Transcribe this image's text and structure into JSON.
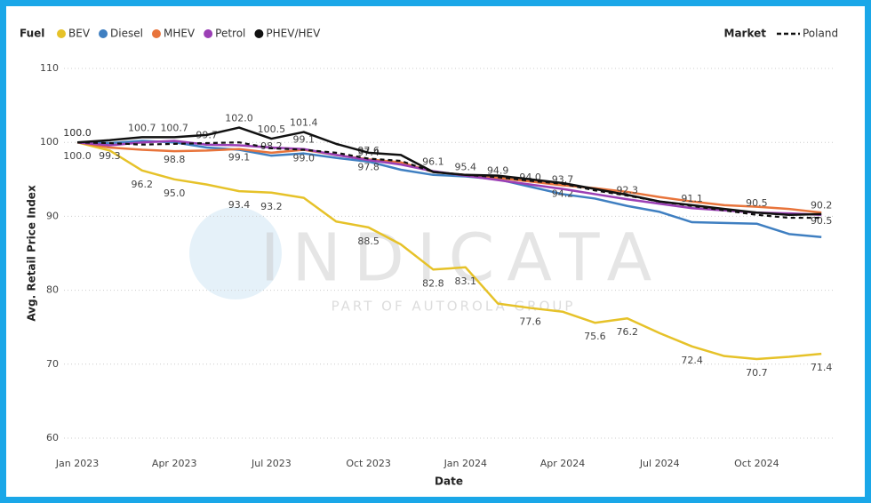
{
  "chart_data": {
    "type": "line",
    "legend_title": "Fuel",
    "market_legend_title": "Market",
    "watermark": "INDICATA",
    "watermark_sub": "PART OF AUTOROLA GROUP",
    "xlabel": "Date",
    "ylabel": "Avg. Retail Price Index",
    "categories": [
      "Jan 2023",
      null,
      null,
      "Apr 2023",
      null,
      null,
      "Jul 2023",
      null,
      null,
      "Oct 2023",
      null,
      null,
      "Jan 2024",
      null,
      null,
      "Apr 2024",
      null,
      null,
      "Jul 2024",
      null,
      null,
      "Oct 2024",
      null,
      null
    ],
    "ylim": [
      60,
      110
    ],
    "yticks": [
      60,
      70,
      80,
      90,
      100,
      110
    ],
    "grid": true,
    "series": [
      {
        "name": "BEV",
        "color": "#e6c229",
        "values": [
          100,
          98.9,
          96.2,
          95.0,
          94.3,
          93.4,
          93.2,
          92.5,
          89.3,
          88.5,
          86.2,
          82.8,
          83.1,
          78.2,
          77.6,
          77.1,
          75.6,
          76.2,
          74.2,
          72.4,
          71.1,
          70.7,
          71.0,
          71.4
        ],
        "value_labels": [
          "100.0",
          null,
          "96.2",
          "95.0",
          null,
          "93.4",
          "93.2",
          null,
          null,
          "88.5",
          null,
          "82.8",
          "83.1",
          null,
          "77.6",
          null,
          "75.6",
          "76.2",
          null,
          "72.4",
          null,
          "70.7",
          null,
          "71.4"
        ]
      },
      {
        "name": "Diesel",
        "color": "#3f7fc1",
        "values": [
          100,
          99.9,
          100.2,
          100.0,
          99.3,
          99.0,
          98.2,
          98.5,
          97.9,
          97.4,
          96.3,
          95.6,
          95.4,
          95.0,
          94.0,
          93.0,
          92.4,
          91.4,
          90.6,
          89.2,
          89.1,
          89.0,
          87.6,
          87.2
        ],
        "value_labels": [
          "100.0",
          null,
          null,
          null,
          null,
          null,
          "98.2",
          null,
          null,
          "97.4",
          null,
          null,
          "95.4",
          null,
          "94.0",
          null,
          null,
          null,
          null,
          null,
          null,
          null,
          null,
          null
        ]
      },
      {
        "name": "MHEV",
        "color": "#e8743b",
        "values": [
          100,
          99.3,
          99.0,
          98.8,
          98.9,
          99.1,
          98.6,
          99.0,
          98.3,
          97.7,
          97.3,
          96.0,
          95.6,
          95.2,
          94.7,
          94.2,
          93.8,
          93.3,
          92.6,
          92.0,
          91.5,
          91.3,
          91.0,
          90.5
        ],
        "value_labels": [
          null,
          "99.3",
          null,
          "98.8",
          null,
          "99.1",
          null,
          "99.0",
          null,
          null,
          null,
          null,
          null,
          null,
          null,
          "94.2",
          null,
          null,
          null,
          null,
          null,
          null,
          null,
          "90.5"
        ]
      },
      {
        "name": "Petrol",
        "color": "#9b3fb5",
        "values": [
          100,
          99.6,
          100.0,
          100.2,
          99.7,
          99.6,
          99.3,
          99.1,
          98.3,
          97.6,
          97.0,
          96.1,
          95.5,
          94.9,
          94.3,
          93.7,
          93.0,
          92.3,
          91.7,
          91.1,
          90.8,
          90.5,
          90.4,
          90.2
        ],
        "value_labels": [
          null,
          null,
          null,
          null,
          "99.7",
          null,
          null,
          "99.1",
          null,
          "97.6",
          null,
          "96.1",
          null,
          "94.9",
          null,
          "93.7",
          null,
          "92.3",
          null,
          "91.1",
          null,
          "90.5",
          null,
          "90.2"
        ]
      },
      {
        "name": "PHEV/HEV",
        "color": "#111111",
        "values": [
          100,
          100.3,
          100.7,
          100.7,
          101.0,
          102.0,
          100.5,
          101.4,
          99.8,
          98.6,
          98.3,
          96.0,
          95.6,
          95.5,
          95.0,
          94.5,
          93.7,
          92.9,
          92.0,
          91.5,
          91.0,
          90.5,
          90.2,
          90.3
        ],
        "value_labels": [
          "100.0",
          null,
          "100.7",
          "100.7",
          null,
          "102.0",
          "100.5",
          "101.4",
          null,
          null,
          null,
          null,
          null,
          null,
          null,
          null,
          null,
          null,
          null,
          null,
          null,
          null,
          null,
          null
        ]
      }
    ],
    "market_series": [
      {
        "name": "Poland",
        "color": "#111111",
        "dash": true,
        "values": [
          100,
          99.9,
          99.7,
          99.8,
          99.9,
          100.0,
          99.2,
          99.0,
          98.6,
          97.8,
          97.5,
          96.0,
          95.6,
          95.3,
          94.8,
          94.4,
          93.5,
          92.8,
          92.0,
          91.4,
          90.8,
          90.2,
          89.8,
          89.8
        ],
        "value_labels": [
          null,
          null,
          null,
          null,
          null,
          null,
          null,
          null,
          null,
          "97.8",
          null,
          null,
          null,
          null,
          null,
          null,
          null,
          null,
          null,
          null,
          null,
          null,
          null,
          null
        ]
      }
    ]
  }
}
